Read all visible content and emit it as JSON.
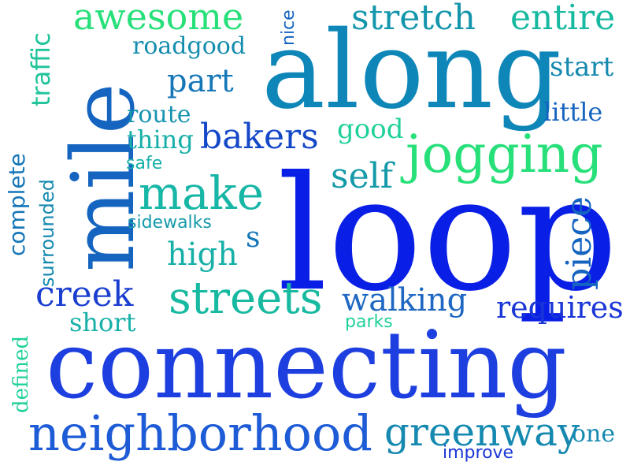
{
  "words": [
    {
      "id": "connecting",
      "text": "connecting",
      "color": "#1e3fe0"
    },
    {
      "id": "loop",
      "text": "loop",
      "color": "#0a1fe6"
    },
    {
      "id": "along",
      "text": "along",
      "color": "#0e86b8"
    },
    {
      "id": "mile",
      "text": "mile",
      "color": "#1565c0"
    },
    {
      "id": "neighborhood",
      "text": "neighborhood",
      "color": "#1e5bd6"
    },
    {
      "id": "jogging",
      "text": "jogging",
      "color": "#27e07a"
    },
    {
      "id": "streets",
      "text": "streets",
      "color": "#17b9a0"
    },
    {
      "id": "make",
      "text": "make",
      "color": "#17b6a6"
    },
    {
      "id": "greenway",
      "text": "greenway",
      "color": "#1589b0"
    },
    {
      "id": "awesome",
      "text": "awesome",
      "color": "#27e07a"
    },
    {
      "id": "stretch",
      "text": "stretch",
      "color": "#1396ac"
    },
    {
      "id": "entire",
      "text": "entire",
      "color": "#17b9a0"
    },
    {
      "id": "bakers",
      "text": "bakers",
      "color": "#1548c8"
    },
    {
      "id": "creek",
      "text": "creek",
      "color": "#1a3fd0"
    },
    {
      "id": "walking",
      "text": "walking",
      "color": "#1e67c2"
    },
    {
      "id": "requires",
      "text": "requires",
      "color": "#1a36d6"
    },
    {
      "id": "piece",
      "text": "piece",
      "color": "#1564c0"
    },
    {
      "id": "self",
      "text": "self",
      "color": "#159aa9"
    },
    {
      "id": "part",
      "text": "part",
      "color": "#1577b8"
    },
    {
      "id": "high",
      "text": "high",
      "color": "#17b0a8"
    },
    {
      "id": "route",
      "text": "route",
      "color": "#1594b0"
    },
    {
      "id": "thing",
      "text": "thing",
      "color": "#17b0a8"
    },
    {
      "id": "good",
      "text": "good",
      "color": "#1fd09a"
    },
    {
      "id": "roadgood",
      "text": "roadgood",
      "color": "#148cae"
    },
    {
      "id": "start",
      "text": "start",
      "color": "#1589b0"
    },
    {
      "id": "little",
      "text": "little",
      "color": "#1564c0"
    },
    {
      "id": "nice",
      "text": "nice",
      "color": "#1564c0"
    },
    {
      "id": "traffic",
      "text": "traffic",
      "color": "#1fc49a"
    },
    {
      "id": "complete",
      "text": "complete",
      "color": "#1576b8"
    },
    {
      "id": "surrounded",
      "text": "surrounded",
      "color": "#1589b0"
    },
    {
      "id": "safe",
      "text": "safe",
      "color": "#17b0a8"
    },
    {
      "id": "sidewalks",
      "text": "sidewalks",
      "color": "#159aa9"
    },
    {
      "id": "s",
      "text": "s",
      "color": "#1576b8"
    },
    {
      "id": "short",
      "text": "short",
      "color": "#17b0a8"
    },
    {
      "id": "parks",
      "text": "parks",
      "color": "#1fd09a"
    },
    {
      "id": "defined",
      "text": "defined",
      "color": "#1fd09a"
    },
    {
      "id": "one",
      "text": "one",
      "color": "#1589b0"
    },
    {
      "id": "improve",
      "text": "improve",
      "color": "#1a36d6"
    }
  ]
}
